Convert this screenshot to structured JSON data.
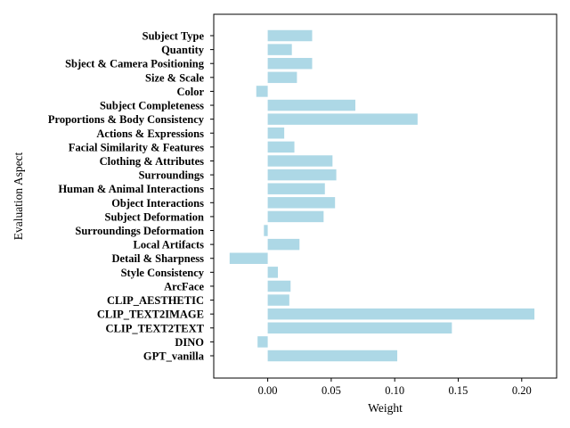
{
  "chart_data": {
    "type": "bar",
    "orientation": "horizontal",
    "xlabel": "Weight",
    "ylabel": "Evaluation Aspect",
    "xlim": [
      -0.0425,
      0.2275
    ],
    "xticks": [
      "0.00",
      "0.05",
      "0.10",
      "0.15",
      "0.20"
    ],
    "xtick_values": [
      0,
      0.05,
      0.1,
      0.15,
      0.2
    ],
    "grid": false,
    "bar_color": "#add8e6",
    "categories": [
      "Subject Type",
      "Quantity",
      "Sbject & Camera Positioning",
      "Size & Scale",
      "Color",
      "Subject Completeness",
      "Proportions & Body Consistency",
      "Actions & Expressions",
      "Facial Similarity & Features",
      "Clothing & Attributes",
      "Surroundings",
      "Human & Animal Interactions",
      "Object Interactions",
      "Subject Deformation",
      "Surroundings Deformation",
      "Local Artifacts",
      "Detail & Sharpness",
      "Style Consistency",
      "ArcFace",
      "CLIP_AESTHETIC",
      "CLIP_TEXT2IMAGE",
      "CLIP_TEXT2TEXT",
      "DINO",
      "GPT_vanilla"
    ],
    "values": [
      0.035,
      0.019,
      0.035,
      0.023,
      -0.009,
      0.069,
      0.118,
      0.013,
      0.021,
      0.051,
      0.054,
      0.045,
      0.053,
      0.044,
      -0.003,
      0.025,
      -0.03,
      0.008,
      0.018,
      0.017,
      0.21,
      0.145,
      -0.008,
      0.102
    ]
  }
}
